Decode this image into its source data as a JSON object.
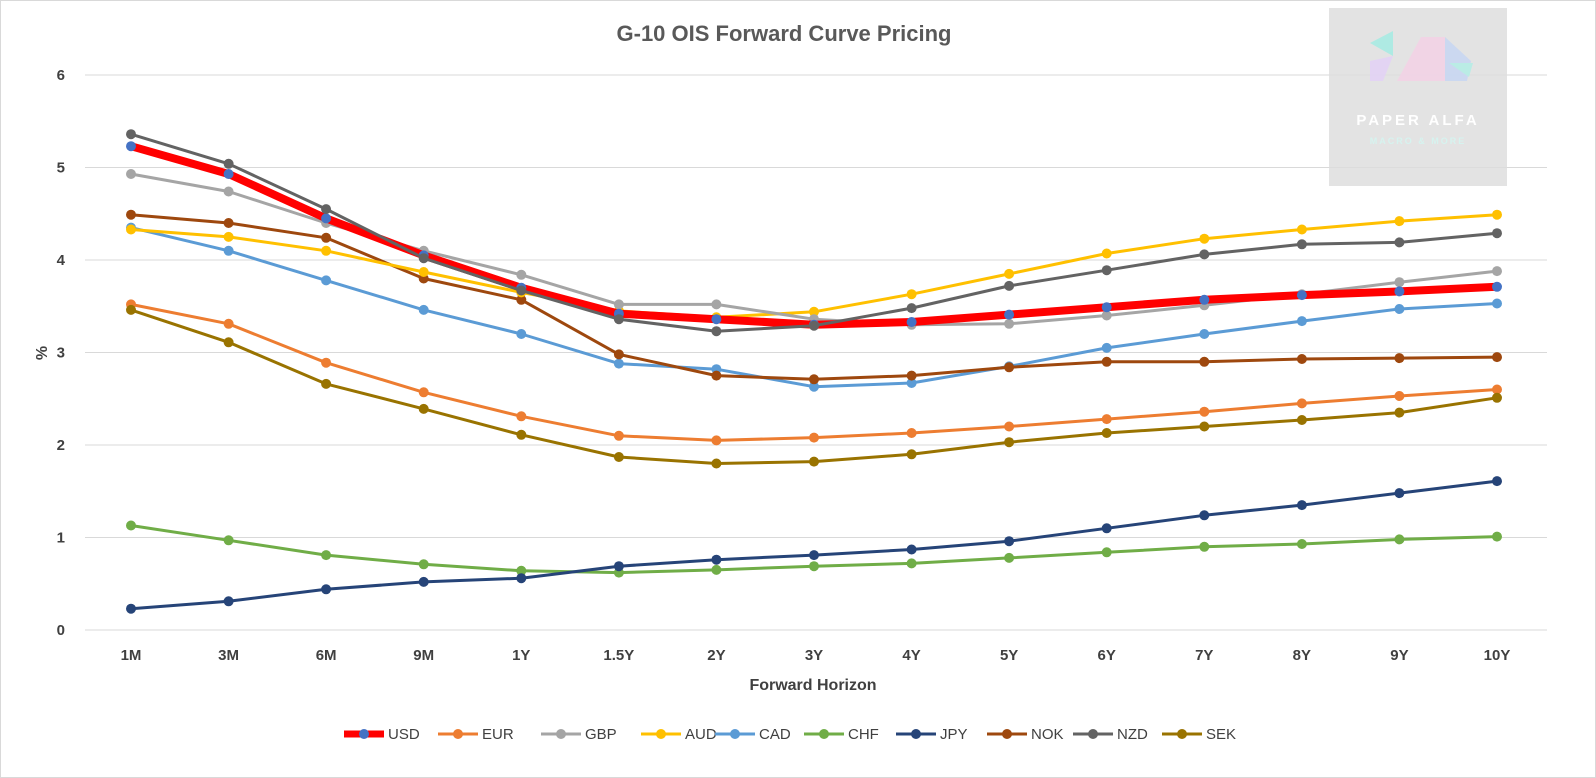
{
  "watermark": {
    "name": "PAPER ALFA",
    "tagline": "MACRO & MORE"
  },
  "chart_data": {
    "type": "line",
    "title": "G-10 OIS Forward Curve Pricing",
    "xlabel": "Forward Horizon",
    "ylabel": "%",
    "ylim": [
      0,
      6
    ],
    "yticks": [
      "0",
      "1",
      "2",
      "3",
      "4",
      "5",
      "6"
    ],
    "grid": "horizontal",
    "legend_position": "bottom",
    "categories": [
      "1M",
      "3M",
      "6M",
      "9M",
      "1Y",
      "1.5Y",
      "2Y",
      "3Y",
      "4Y",
      "5Y",
      "6Y",
      "7Y",
      "8Y",
      "9Y",
      "10Y"
    ],
    "series": [
      {
        "name": "USD",
        "color": "#ff0000",
        "marker": "#4472c4",
        "values": [
          5.23,
          4.93,
          4.45,
          4.05,
          3.7,
          3.42,
          3.36,
          3.3,
          3.33,
          3.41,
          3.49,
          3.57,
          3.62,
          3.66,
          3.71
        ]
      },
      {
        "name": "EUR",
        "color": "#ed7d31",
        "marker": "#ed7d31",
        "values": [
          3.52,
          3.31,
          2.89,
          2.57,
          2.31,
          2.1,
          2.05,
          2.08,
          2.13,
          2.2,
          2.28,
          2.36,
          2.45,
          2.53,
          2.6
        ]
      },
      {
        "name": "GBP",
        "color": "#a5a5a5",
        "marker": "#a5a5a5",
        "values": [
          4.93,
          4.74,
          4.4,
          4.1,
          3.84,
          3.52,
          3.52,
          3.36,
          3.3,
          3.31,
          3.4,
          3.51,
          3.63,
          3.76,
          3.88
        ]
      },
      {
        "name": "AUD",
        "color": "#ffc000",
        "marker": "#ffc000",
        "values": [
          4.33,
          4.25,
          4.1,
          3.87,
          3.65,
          3.45,
          3.38,
          3.44,
          3.63,
          3.85,
          4.07,
          4.23,
          4.33,
          4.42,
          4.49
        ]
      },
      {
        "name": "CAD",
        "color": "#5b9bd5",
        "marker": "#5b9bd5",
        "values": [
          4.35,
          4.1,
          3.78,
          3.46,
          3.2,
          2.88,
          2.82,
          2.63,
          2.67,
          2.85,
          3.05,
          3.2,
          3.34,
          3.47,
          3.53
        ]
      },
      {
        "name": "CHF",
        "color": "#70ad47",
        "marker": "#70ad47",
        "values": [
          1.13,
          0.97,
          0.81,
          0.71,
          0.64,
          0.62,
          0.65,
          0.69,
          0.72,
          0.78,
          0.84,
          0.9,
          0.93,
          0.98,
          1.01
        ]
      },
      {
        "name": "JPY",
        "color": "#264478",
        "marker": "#264478",
        "values": [
          0.23,
          0.31,
          0.44,
          0.52,
          0.56,
          0.69,
          0.76,
          0.81,
          0.87,
          0.96,
          1.1,
          1.24,
          1.35,
          1.48,
          1.61
        ]
      },
      {
        "name": "NOK",
        "color": "#9e480e",
        "marker": "#9e480e",
        "values": [
          4.49,
          4.4,
          4.24,
          3.8,
          3.57,
          2.98,
          2.75,
          2.71,
          2.75,
          2.84,
          2.9,
          2.9,
          2.93,
          2.94,
          2.95
        ]
      },
      {
        "name": "NZD",
        "color": "#636363",
        "marker": "#636363",
        "values": [
          5.36,
          5.04,
          4.55,
          4.02,
          3.67,
          3.36,
          3.23,
          3.29,
          3.48,
          3.72,
          3.89,
          4.06,
          4.17,
          4.19,
          4.29
        ]
      },
      {
        "name": "SEK",
        "color": "#997300",
        "marker": "#997300",
        "values": [
          3.46,
          3.11,
          2.66,
          2.39,
          2.11,
          1.87,
          1.8,
          1.82,
          1.9,
          2.03,
          2.13,
          2.2,
          2.27,
          2.35,
          2.51
        ]
      }
    ]
  }
}
